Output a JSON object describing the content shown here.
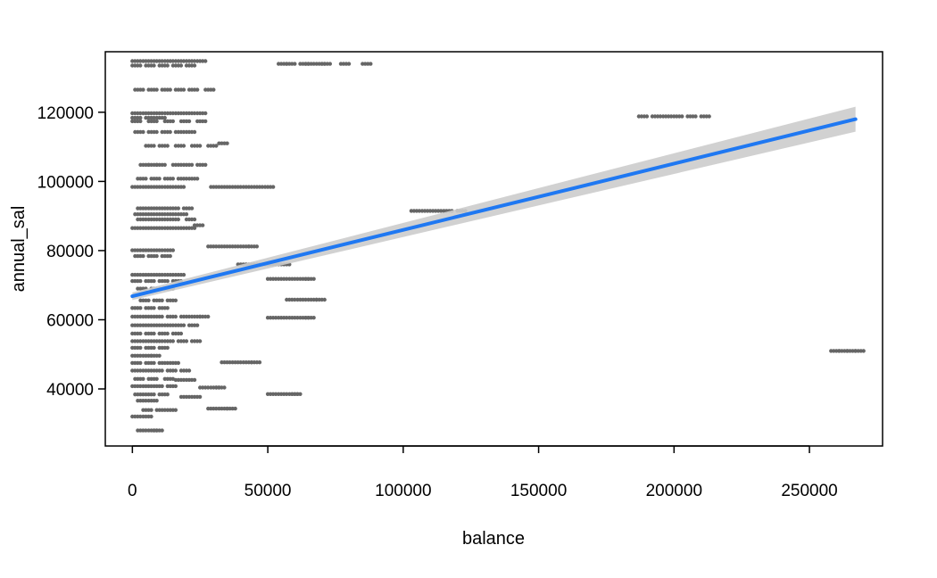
{
  "chart_data": {
    "type": "scatter",
    "title": "",
    "xlabel": "balance",
    "ylabel": "annual_sal",
    "xlim": [
      -10000,
      277000
    ],
    "ylim": [
      23500,
      137500
    ],
    "xticks": [
      0,
      50000,
      100000,
      150000,
      200000,
      250000
    ],
    "xtick_labels": [
      "0",
      "50000",
      "100000",
      "150000",
      "200000",
      "250000"
    ],
    "yticks": [
      40000,
      60000,
      80000,
      100000,
      120000
    ],
    "ytick_labels": [
      "40000",
      "60000",
      "80000",
      "100000",
      "120000"
    ],
    "grid": false,
    "legend": "none",
    "colors": {
      "points": "#666666",
      "fit_line": "#1f78f2",
      "ci_band": "#cccccc",
      "frame": "#000000"
    },
    "points": [
      [
        0,
        134800
      ],
      [
        4000,
        134800
      ],
      [
        8000,
        134800
      ],
      [
        12000,
        134800
      ],
      [
        16000,
        134800
      ],
      [
        20000,
        134800
      ],
      [
        24000,
        134800
      ],
      [
        54000,
        134000
      ],
      [
        57000,
        134000
      ],
      [
        62000,
        134000
      ],
      [
        64000,
        134000
      ],
      [
        68000,
        134000
      ],
      [
        70000,
        134000
      ],
      [
        77000,
        134000
      ],
      [
        85000,
        134000
      ],
      [
        0,
        133500
      ],
      [
        5000,
        133500
      ],
      [
        10000,
        133500
      ],
      [
        15000,
        133500
      ],
      [
        20000,
        133500
      ],
      [
        1000,
        126500
      ],
      [
        6000,
        126500
      ],
      [
        11000,
        126500
      ],
      [
        16000,
        126500
      ],
      [
        21000,
        126500
      ],
      [
        27000,
        126500
      ],
      [
        0,
        119700
      ],
      [
        4000,
        119700
      ],
      [
        8000,
        119700
      ],
      [
        12000,
        119700
      ],
      [
        16000,
        119700
      ],
      [
        20000,
        119700
      ],
      [
        24000,
        119700
      ],
      [
        0,
        117400
      ],
      [
        6000,
        117400
      ],
      [
        12000,
        117400
      ],
      [
        18000,
        117400
      ],
      [
        24000,
        117400
      ],
      [
        0,
        118400
      ],
      [
        5000,
        118400
      ],
      [
        9000,
        118400
      ],
      [
        187000,
        118800
      ],
      [
        192000,
        118800
      ],
      [
        196000,
        118800
      ],
      [
        200000,
        118800
      ],
      [
        205000,
        118800
      ],
      [
        210000,
        118800
      ],
      [
        1000,
        114300
      ],
      [
        6000,
        114300
      ],
      [
        11000,
        114300
      ],
      [
        16000,
        114300
      ],
      [
        20000,
        114300
      ],
      [
        5000,
        110300
      ],
      [
        10000,
        110300
      ],
      [
        16000,
        110300
      ],
      [
        22000,
        110300
      ],
      [
        28000,
        110300
      ],
      [
        32000,
        111000
      ],
      [
        3000,
        104800
      ],
      [
        6000,
        104800
      ],
      [
        9000,
        104800
      ],
      [
        15000,
        104800
      ],
      [
        19000,
        104800
      ],
      [
        24000,
        104800
      ],
      [
        2000,
        100800
      ],
      [
        7000,
        100800
      ],
      [
        12000,
        100800
      ],
      [
        17000,
        100800
      ],
      [
        21000,
        100800
      ],
      [
        0,
        98400
      ],
      [
        4000,
        98400
      ],
      [
        8000,
        98400
      ],
      [
        12000,
        98400
      ],
      [
        16000,
        98400
      ],
      [
        29000,
        98400
      ],
      [
        33000,
        98400
      ],
      [
        37000,
        98400
      ],
      [
        41000,
        98400
      ],
      [
        45000,
        98400
      ],
      [
        49000,
        98400
      ],
      [
        2000,
        92200
      ],
      [
        6000,
        92200
      ],
      [
        10000,
        92200
      ],
      [
        14000,
        92200
      ],
      [
        19000,
        92200
      ],
      [
        103000,
        91500
      ],
      [
        107000,
        91500
      ],
      [
        111000,
        91500
      ],
      [
        115000,
        91500
      ],
      [
        120000,
        91500
      ],
      [
        1000,
        90500
      ],
      [
        5000,
        90500
      ],
      [
        9000,
        90500
      ],
      [
        13000,
        90500
      ],
      [
        17000,
        90500
      ],
      [
        2000,
        89000
      ],
      [
        6000,
        89000
      ],
      [
        10000,
        89000
      ],
      [
        14000,
        89000
      ],
      [
        20000,
        89000
      ],
      [
        0,
        86500
      ],
      [
        4000,
        86500
      ],
      [
        8000,
        86500
      ],
      [
        12000,
        86500
      ],
      [
        16000,
        86500
      ],
      [
        20000,
        86500
      ],
      [
        23000,
        87300
      ],
      [
        0,
        80100
      ],
      [
        4000,
        80100
      ],
      [
        8000,
        80100
      ],
      [
        12000,
        80100
      ],
      [
        1000,
        78400
      ],
      [
        6000,
        78400
      ],
      [
        11000,
        78400
      ],
      [
        28000,
        81200
      ],
      [
        32000,
        81200
      ],
      [
        36000,
        81200
      ],
      [
        40000,
        81200
      ],
      [
        43000,
        81200
      ],
      [
        39000,
        76000
      ],
      [
        43000,
        76000
      ],
      [
        47000,
        76000
      ],
      [
        51000,
        76000
      ],
      [
        55000,
        76000
      ],
      [
        0,
        73000
      ],
      [
        4000,
        73000
      ],
      [
        8000,
        73000
      ],
      [
        12000,
        73000
      ],
      [
        16000,
        73000
      ],
      [
        0,
        71200
      ],
      [
        5000,
        71200
      ],
      [
        10000,
        71200
      ],
      [
        15000,
        71200
      ],
      [
        2000,
        69000
      ],
      [
        7000,
        69000
      ],
      [
        12000,
        69000
      ],
      [
        50000,
        71800
      ],
      [
        54000,
        71800
      ],
      [
        58000,
        71800
      ],
      [
        62000,
        71800
      ],
      [
        64000,
        71800
      ],
      [
        3000,
        65600
      ],
      [
        8000,
        65600
      ],
      [
        13000,
        65600
      ],
      [
        57000,
        65800
      ],
      [
        61000,
        65800
      ],
      [
        65000,
        65800
      ],
      [
        68000,
        65800
      ],
      [
        0,
        63400
      ],
      [
        5000,
        63400
      ],
      [
        10000,
        63400
      ],
      [
        0,
        60900
      ],
      [
        4000,
        60900
      ],
      [
        8000,
        60900
      ],
      [
        13000,
        60900
      ],
      [
        18000,
        60900
      ],
      [
        22000,
        60900
      ],
      [
        25000,
        60900
      ],
      [
        50000,
        60600
      ],
      [
        54000,
        60600
      ],
      [
        58000,
        60600
      ],
      [
        62000,
        60600
      ],
      [
        64000,
        60600
      ],
      [
        0,
        58400
      ],
      [
        4000,
        58400
      ],
      [
        8000,
        58400
      ],
      [
        12000,
        58400
      ],
      [
        16000,
        58400
      ],
      [
        21000,
        58400
      ],
      [
        0,
        56000
      ],
      [
        5000,
        56000
      ],
      [
        10000,
        56000
      ],
      [
        15000,
        56000
      ],
      [
        0,
        53800
      ],
      [
        4000,
        53800
      ],
      [
        8000,
        53800
      ],
      [
        12000,
        53800
      ],
      [
        17000,
        53800
      ],
      [
        22000,
        53800
      ],
      [
        0,
        51900
      ],
      [
        5000,
        51900
      ],
      [
        10000,
        51900
      ],
      [
        258000,
        51000
      ],
      [
        261000,
        51000
      ],
      [
        264000,
        51000
      ],
      [
        267000,
        51000
      ],
      [
        0,
        49600
      ],
      [
        4000,
        49600
      ],
      [
        7000,
        49600
      ],
      [
        0,
        47500
      ],
      [
        5000,
        47500
      ],
      [
        10000,
        47500
      ],
      [
        14000,
        47500
      ],
      [
        33000,
        47700
      ],
      [
        37000,
        47700
      ],
      [
        41000,
        47700
      ],
      [
        44000,
        47700
      ],
      [
        0,
        45300
      ],
      [
        4000,
        45300
      ],
      [
        8000,
        45300
      ],
      [
        13000,
        45300
      ],
      [
        18000,
        45300
      ],
      [
        1000,
        42900
      ],
      [
        6000,
        42900
      ],
      [
        12000,
        42900
      ],
      [
        16000,
        42600
      ],
      [
        20000,
        42600
      ],
      [
        0,
        40800
      ],
      [
        4000,
        40800
      ],
      [
        8000,
        40800
      ],
      [
        13000,
        40800
      ],
      [
        25000,
        40400
      ],
      [
        29000,
        40400
      ],
      [
        31000,
        40400
      ],
      [
        1000,
        38400
      ],
      [
        5000,
        38400
      ],
      [
        10000,
        38400
      ],
      [
        50000,
        38500
      ],
      [
        54000,
        38500
      ],
      [
        58000,
        38500
      ],
      [
        59000,
        38500
      ],
      [
        18000,
        37700
      ],
      [
        22000,
        37700
      ],
      [
        2000,
        36600
      ],
      [
        6000,
        36600
      ],
      [
        4000,
        33900
      ],
      [
        9000,
        33900
      ],
      [
        13000,
        33900
      ],
      [
        28000,
        34300
      ],
      [
        32000,
        34300
      ],
      [
        35000,
        34300
      ],
      [
        0,
        32000
      ],
      [
        4000,
        32000
      ],
      [
        2000,
        28000
      ],
      [
        6000,
        28000
      ],
      [
        8000,
        28000
      ]
    ],
    "fit": {
      "x": [
        0,
        267000
      ],
      "y": [
        66800,
        118000
      ],
      "ci_halfwidth": [
        1100,
        3600
      ]
    }
  }
}
